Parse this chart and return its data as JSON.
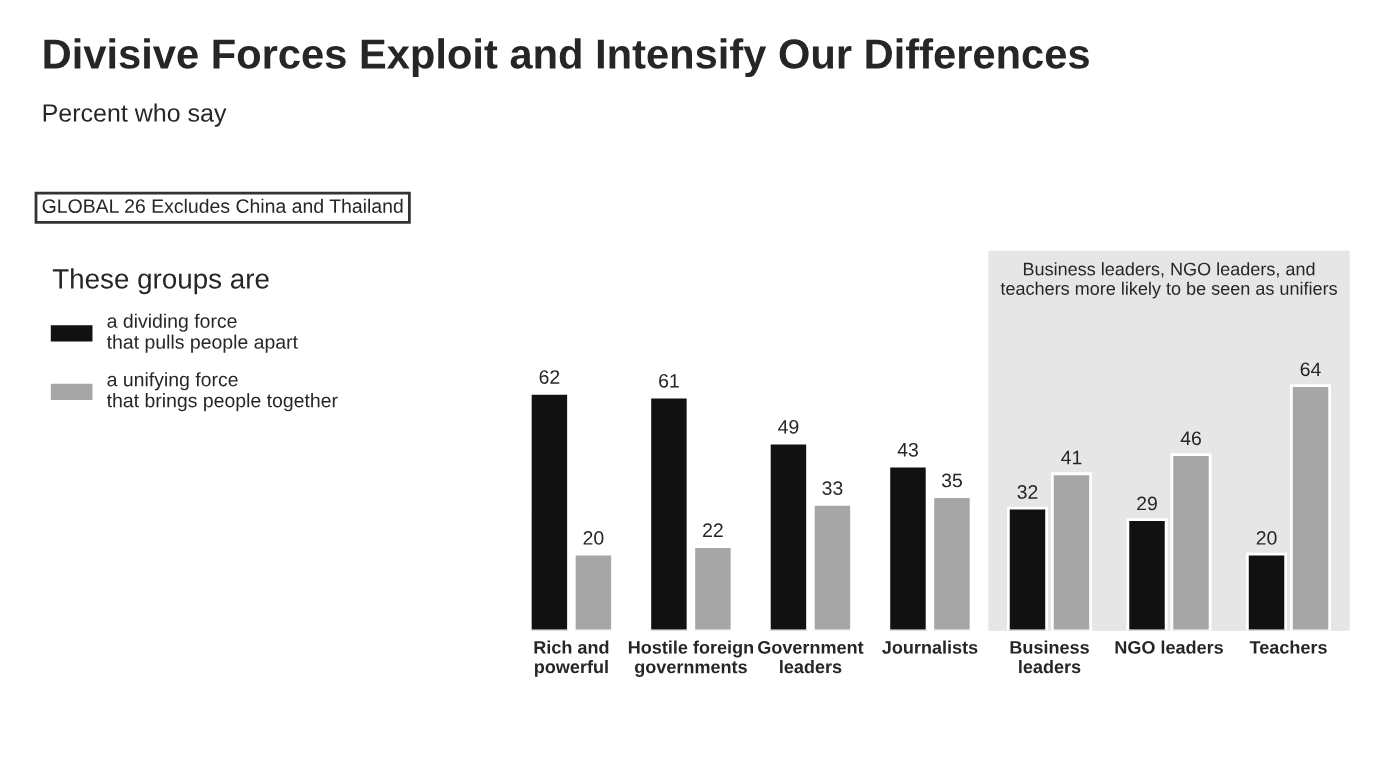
{
  "chart_data": {
    "type": "bar",
    "title": "Divisive Forces Exploit and Intensify Our Differences",
    "subtitle": "Percent who say",
    "legend_title": "These groups are",
    "categories": [
      "Rich and\npowerful",
      "Hostile foreign\ngovernments",
      "Government\nleaders",
      "Journalists",
      "Business\nleaders",
      "NGO leaders",
      "Teachers"
    ],
    "series": [
      {
        "name": "a dividing force\nthat pulls people apart",
        "color": "#111111",
        "values": [
          62,
          61,
          49,
          43,
          32,
          29,
          20
        ]
      },
      {
        "name": "a unifying force\nthat brings people together",
        "color": "#a6a6a6",
        "values": [
          20,
          22,
          33,
          35,
          41,
          46,
          64
        ]
      }
    ],
    "bands": [
      {
        "axis": "x",
        "from": "Business\nleaders",
        "to": "Teachers",
        "label": "Business leaders, NGO leaders, and\nteachers more likely to be seen as unifiers",
        "color": "#e6e6e6"
      }
    ],
    "annotations": [
      "GLOBAL 26 Excludes China and Thailand"
    ],
    "data_labels": true,
    "legend": "top left",
    "grid": false
  }
}
